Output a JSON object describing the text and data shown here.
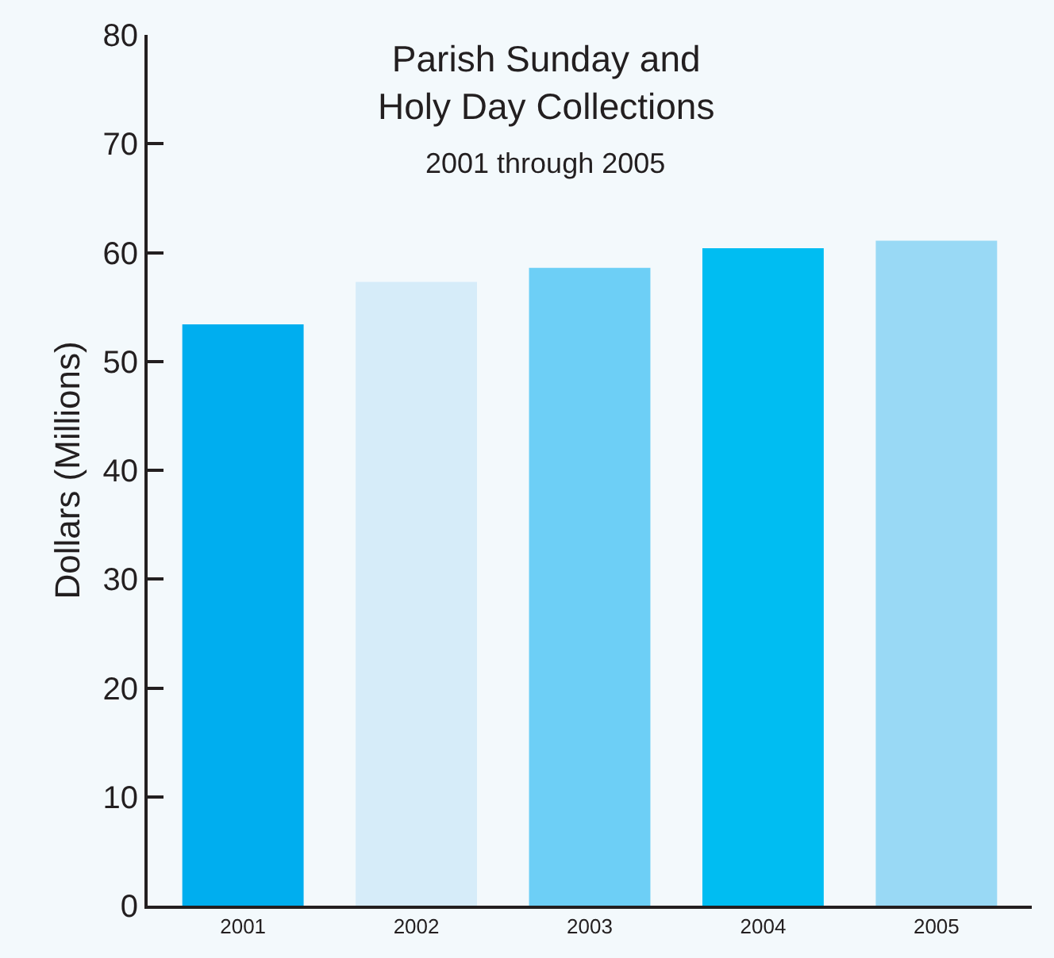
{
  "chart_data": {
    "type": "bar",
    "title": "Parish Sunday and\nHoly Day Collections",
    "subtitle": "2001 through 2005",
    "ylabel": "Dollars (Millions)",
    "categories": [
      "2001",
      "2002",
      "2003",
      "2004",
      "2005"
    ],
    "values": [
      53.4,
      57.3,
      58.6,
      60.4,
      61.1
    ],
    "colors": [
      "#00aeef",
      "#d6ecf9",
      "#6dcff6",
      "#00bdf2",
      "#99d9f5"
    ],
    "ylim": [
      0,
      80
    ],
    "yticks": [
      0,
      10,
      20,
      30,
      40,
      50,
      60,
      70,
      80
    ],
    "grid": false
  }
}
